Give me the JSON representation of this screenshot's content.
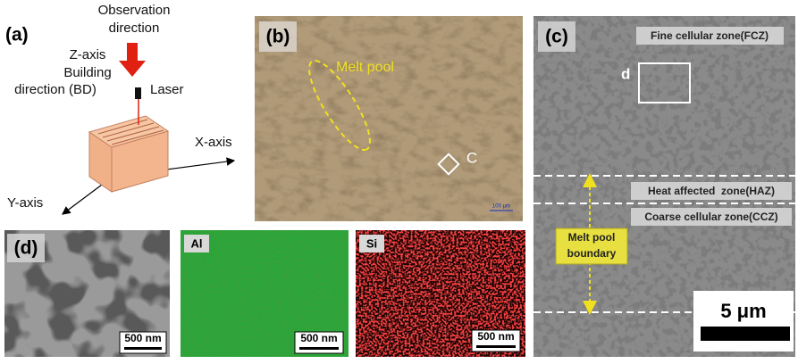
{
  "panel_a": {
    "label": "(a)",
    "observation_direction": [
      "Observation",
      "direction"
    ],
    "z_axis": "Z-axis",
    "building_direction": [
      "Building",
      "direction (BD)"
    ],
    "laser": "Laser",
    "x_axis": "X-axis",
    "y_axis": "Y-axis"
  },
  "panel_b": {
    "label": "(b)",
    "melt_pool": "Melt pool",
    "region_marker": "C",
    "scale_bar": "100 μm"
  },
  "panel_c": {
    "label": "(c)",
    "fine_zone": "Fine cellular zone(FCZ)",
    "region_marker": "d",
    "heat_zone": "Heat affected  zone(HAZ)",
    "coarse_zone": "Coarse cellular zone(CCZ)",
    "boundary": [
      "Melt pool",
      "boundary"
    ],
    "scale_bar": "5 μm"
  },
  "panel_d": {
    "label": "(d)",
    "images": [
      {
        "scale_bar": "500 nm"
      },
      {
        "element": "Al",
        "scale_bar": "500 nm"
      },
      {
        "element": "Si",
        "scale_bar": "500 nm"
      }
    ]
  }
}
